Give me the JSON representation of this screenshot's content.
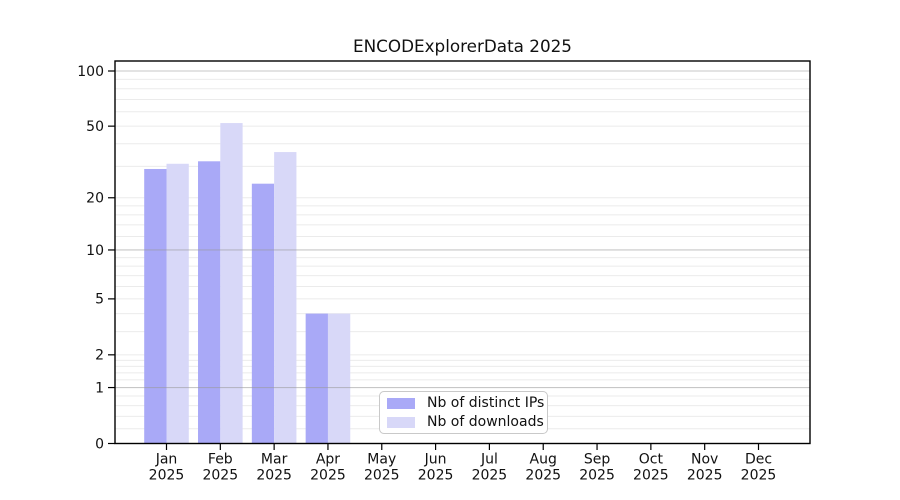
{
  "chart_data": {
    "type": "bar",
    "title": "ENCODExplorerData 2025",
    "categories": [
      "Jan",
      "Feb",
      "Mar",
      "Apr",
      "May",
      "Jun",
      "Jul",
      "Aug",
      "Sep",
      "Oct",
      "Nov",
      "Dec"
    ],
    "category_year_line": "2025",
    "series": [
      {
        "name": "Nb of distinct IPs",
        "color": "#a9a9f7",
        "values": [
          29,
          32,
          24,
          4,
          0,
          0,
          0,
          0,
          0,
          0,
          0,
          0
        ]
      },
      {
        "name": "Nb of downloads",
        "color": "#d8d8f8",
        "values": [
          31,
          52,
          36,
          4,
          0,
          0,
          0,
          0,
          0,
          0,
          0,
          0
        ]
      }
    ],
    "yaxis": {
      "scale": "log10(1+y)",
      "ylim": [
        0,
        113
      ],
      "ticks": [
        100,
        50,
        20,
        10,
        5,
        2,
        1,
        0
      ],
      "major_gridline_values": [
        1,
        10,
        100
      ],
      "minor_gridline_values": [
        0.2,
        0.4,
        0.6,
        0.8,
        1.2,
        1.4,
        1.6,
        1.8,
        2,
        3,
        4,
        5,
        6,
        7,
        8,
        9,
        12,
        14,
        16,
        18,
        20,
        30,
        40,
        50,
        60,
        70,
        80,
        90
      ]
    },
    "grid": true,
    "legend_position": "inside-bottom-center",
    "colors": {
      "minor_grid": "#ebebeb",
      "major_grid": "#999999",
      "axis": "#000000"
    }
  }
}
